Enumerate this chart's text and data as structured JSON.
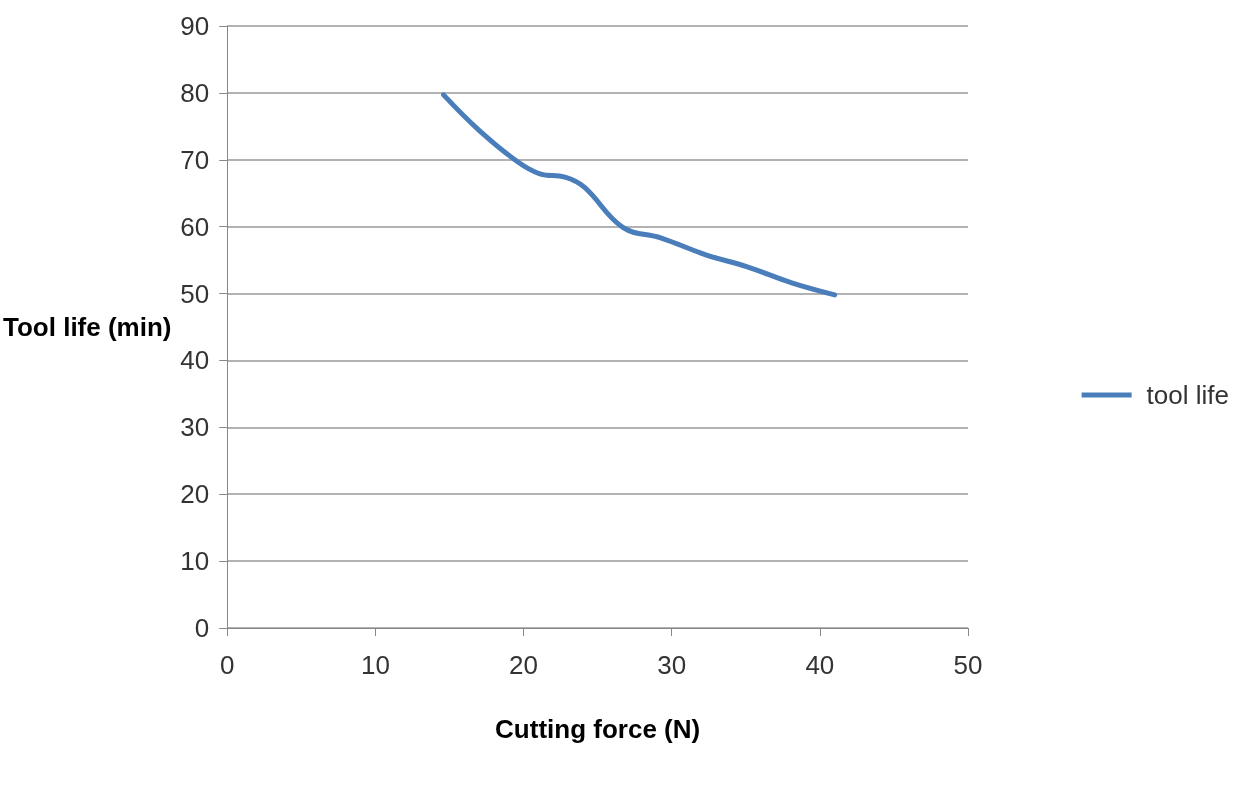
{
  "chart_data": {
    "type": "line",
    "xlabel": "Cutting force (N)",
    "ylabel": "Tool life (min)",
    "xlim": [
      0,
      50
    ],
    "xticks": [
      0,
      10,
      20,
      30,
      40,
      50
    ],
    "ylim": [
      0,
      90
    ],
    "yticks": [
      0,
      10,
      20,
      30,
      40,
      50,
      60,
      70,
      80,
      90
    ],
    "grid": "y",
    "legend": "right",
    "marker": "none",
    "series": [
      {
        "name": "tool life",
        "color": "#4a7ebb",
        "x": [
          14.6,
          17.0,
          19.6,
          21.1,
          22.8,
          24.1,
          26.7,
          29.3,
          32.3,
          35.1,
          38.1,
          41.0
        ],
        "values": [
          79.7,
          74.4,
          69.7,
          67.9,
          67.4,
          65.9,
          59.9,
          58.3,
          55.8,
          54.0,
          51.6,
          49.8
        ]
      }
    ]
  }
}
